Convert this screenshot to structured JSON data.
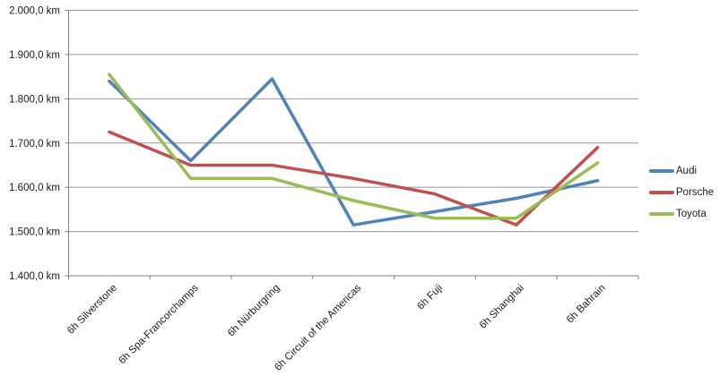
{
  "chart_data": {
    "type": "line",
    "categories": [
      "6h Silverstone",
      "6h Spa-Francorchamps",
      "6h Nürburgring",
      "6h Circuit of the Americas",
      "6h Fuji",
      "6h Shanghai",
      "6h Bahrain"
    ],
    "series": [
      {
        "name": "Audi",
        "color": "#4F81BD",
        "values": [
          1840,
          1660,
          1845,
          1515,
          1545,
          1575,
          1615
        ]
      },
      {
        "name": "Porsche",
        "color": "#C0504D",
        "values": [
          1725,
          1650,
          1650,
          1620,
          1585,
          1515,
          1690
        ]
      },
      {
        "name": "Toyota",
        "color": "#9BBB59",
        "values": [
          1855,
          1620,
          1620,
          1570,
          1530,
          1530,
          1655
        ]
      }
    ],
    "title": "",
    "xlabel": "",
    "ylabel": "",
    "ylim": [
      1400,
      2000
    ],
    "ytick_step": 100,
    "ytick_labels": [
      "2.000,0 km",
      "1.900,0 km",
      "1.800,0 km",
      "1.700,0 km",
      "1.600,0 km",
      "1.500,0 km",
      "1.400,0 km"
    ],
    "unit": "km",
    "grid": true,
    "legend_position": "right",
    "gridline_color": "#969696",
    "axis_color": "#808080",
    "text_color": "#1a1a1a"
  }
}
